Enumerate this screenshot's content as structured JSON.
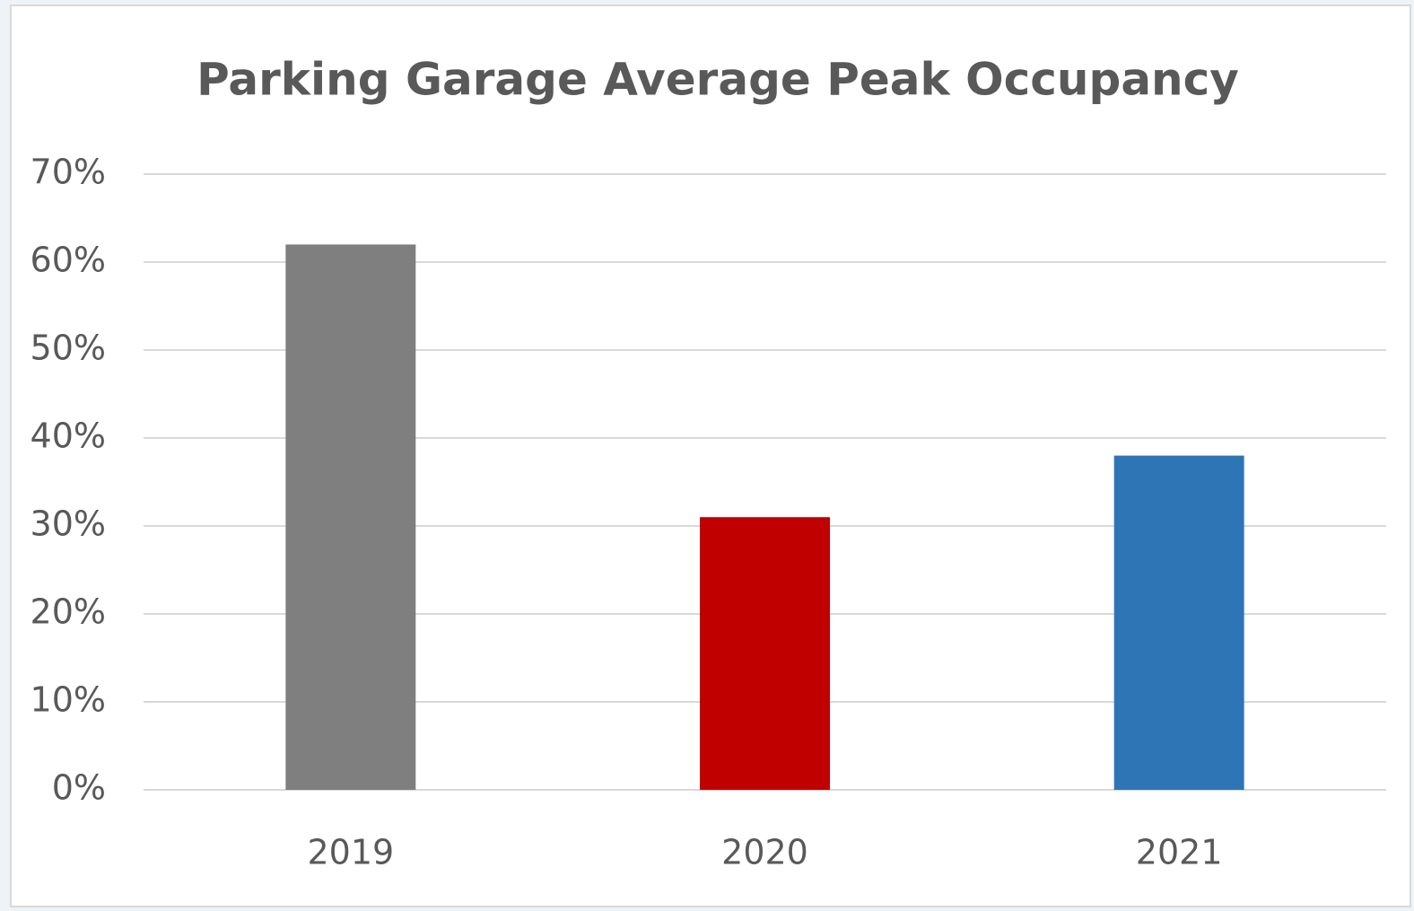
{
  "chart_data": {
    "type": "bar",
    "title": "Parking Garage Average Peak Occupancy",
    "categories": [
      "2019",
      "2020",
      "2021"
    ],
    "values": [
      62,
      31,
      38
    ],
    "colors": [
      "#7f7f7f",
      "#c00000",
      "#2e75b6"
    ],
    "ylim": [
      0,
      70
    ],
    "yticks": [
      {
        "value": 0,
        "label": "0%"
      },
      {
        "value": 10,
        "label": "10%"
      },
      {
        "value": 20,
        "label": "20%"
      },
      {
        "value": 30,
        "label": "30%"
      },
      {
        "value": 40,
        "label": "40%"
      },
      {
        "value": 50,
        "label": "50%"
      },
      {
        "value": 60,
        "label": "60%"
      },
      {
        "value": 70,
        "label": "70%"
      }
    ],
    "grid": true
  }
}
